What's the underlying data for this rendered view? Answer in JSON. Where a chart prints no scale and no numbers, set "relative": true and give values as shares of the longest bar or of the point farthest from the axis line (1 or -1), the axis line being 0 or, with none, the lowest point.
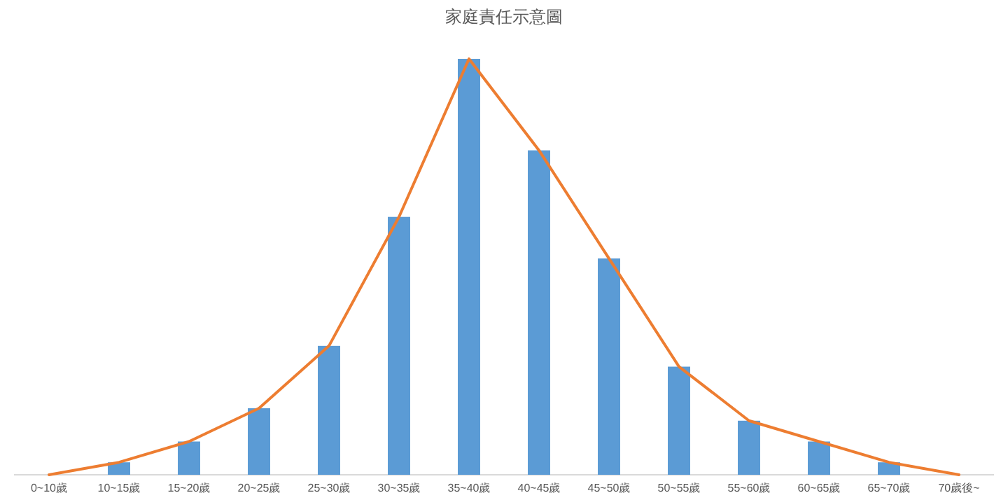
{
  "chart_data": {
    "type": "bar",
    "title": "家庭責任示意圖",
    "relative": true,
    "categories": [
      "0~10歲",
      "10~15歲",
      "15~20歲",
      "20~25歲",
      "25~30歲",
      "30~35歲",
      "35~40歲",
      "40~45歲",
      "45~50歲",
      "50~55歲",
      "55~60歲",
      "60~65歲",
      "65~70歲",
      "70歲後~"
    ],
    "series": [
      {
        "color": "#5b9bd5",
        "values": [
          0,
          0.03,
          0.08,
          0.16,
          0.31,
          0.62,
          1,
          0.78,
          0.52,
          0.26,
          0.13,
          0.08,
          0.03,
          0
        ]
      },
      {
        "type": "line",
        "color": "#ed7d31",
        "values": [
          0,
          0.03,
          0.08,
          0.16,
          0.31,
          0.62,
          1,
          0.78,
          0.52,
          0.26,
          0.13,
          0.08,
          0.03,
          0
        ]
      }
    ]
  }
}
